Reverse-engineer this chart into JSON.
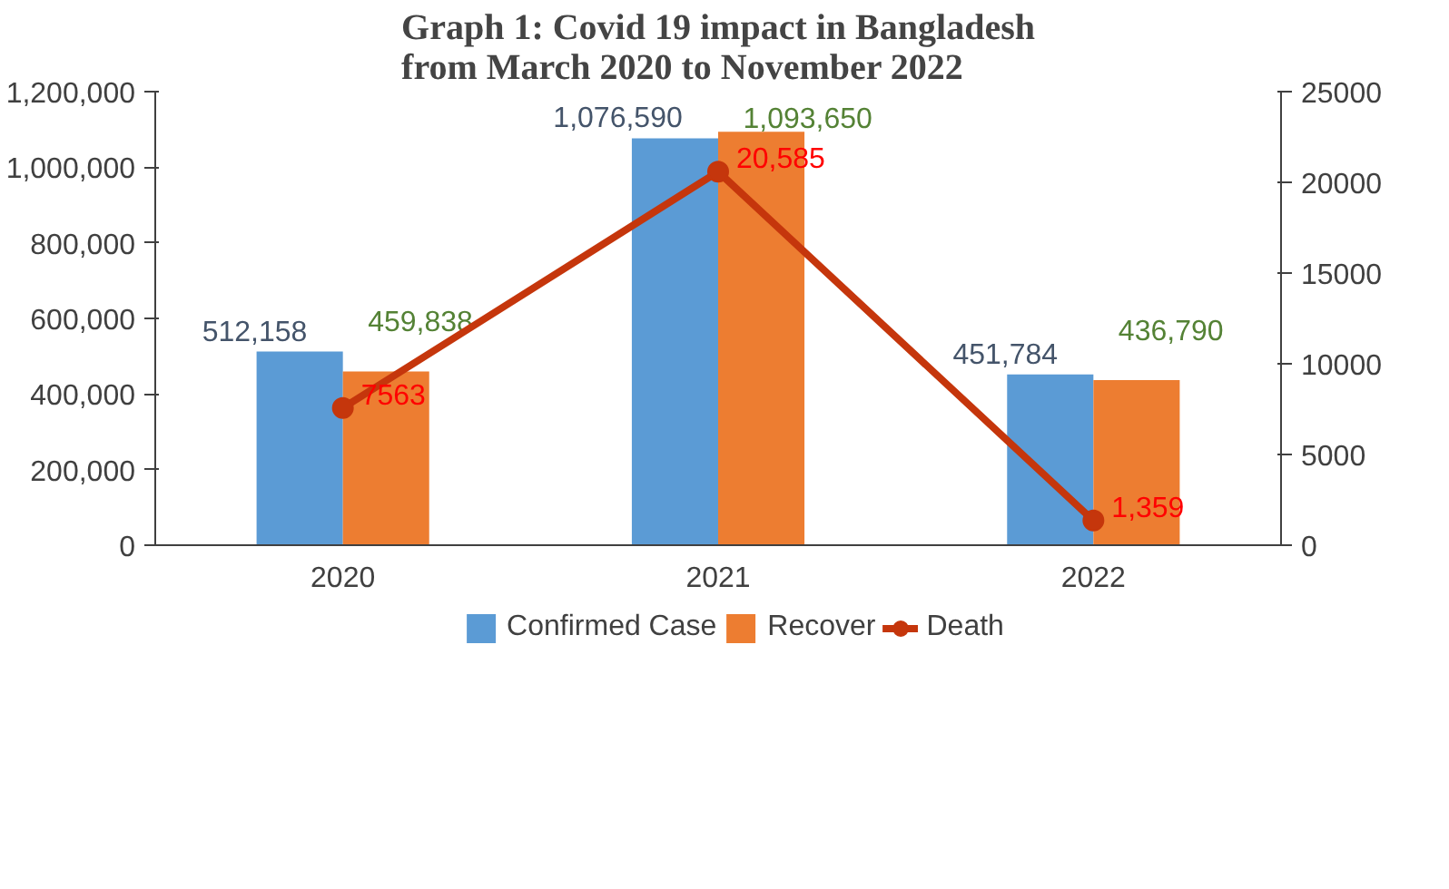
{
  "chart_data": {
    "type": "bar",
    "title": "Graph 1: Covid 19 impact in Bangladesh from March 2020 to November 2022",
    "categories": [
      "2020",
      "2021",
      "2022"
    ],
    "series": [
      {
        "name": "Confirmed Case",
        "color": "#5b9bd5",
        "values": [
          512158,
          1076590,
          451784
        ],
        "value_labels": [
          "512,158",
          "1,076,590",
          "451,784"
        ]
      },
      {
        "name": "Recover",
        "color": "#ed7d31",
        "values": [
          459838,
          1093650,
          436790
        ],
        "value_labels": [
          "459,838",
          "1,093,650",
          "436,790"
        ]
      },
      {
        "name": "Death",
        "type": "line",
        "axis": "y2",
        "color": "#c5360c",
        "marker": "circle",
        "values": [
          7563,
          20585,
          1359
        ],
        "value_labels": [
          "7563",
          "20,585",
          "1,359"
        ]
      }
    ],
    "ylim": [
      0,
      1200000
    ],
    "yticks": [
      0,
      {
        "value": 200000,
        "label": "200,000"
      },
      {
        "value": 400000,
        "label": "400,000"
      },
      {
        "value": 600000,
        "label": "600,000"
      },
      {
        "value": 800000,
        "label": "800,000"
      },
      {
        "value": 1000000,
        "label": "1,000,000"
      },
      {
        "value": 1200000,
        "label": "1,200,000"
      }
    ],
    "y2lim": [
      0,
      25000
    ],
    "y2ticks": [
      0,
      5000,
      10000,
      15000,
      20000,
      25000
    ],
    "grid": false,
    "legend": "bottom"
  }
}
